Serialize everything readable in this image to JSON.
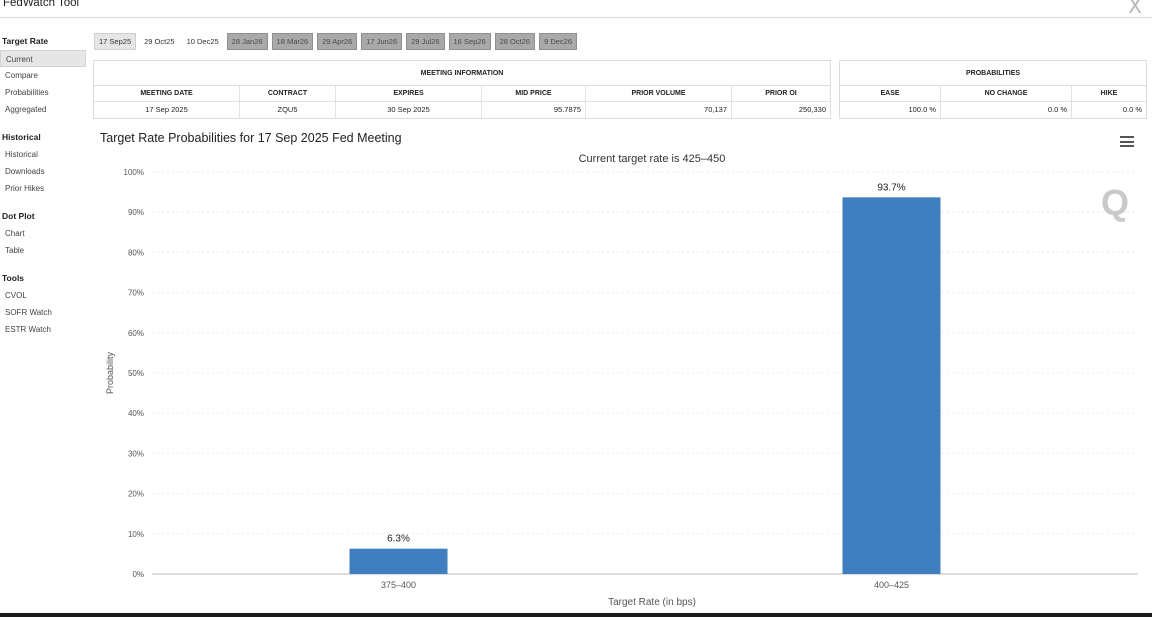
{
  "app": {
    "title": "FedWatch Tool",
    "close_label": "X"
  },
  "sidebar": [
    {
      "heading": "Target Rate",
      "items": [
        {
          "label": "Current",
          "active": true
        },
        {
          "label": "Compare"
        },
        {
          "label": "Probabilities"
        },
        {
          "label": "Aggregated"
        }
      ]
    },
    {
      "heading": "Historical",
      "items": [
        {
          "label": "Historical"
        },
        {
          "label": "Downloads"
        },
        {
          "label": "Prior Hikes"
        }
      ]
    },
    {
      "heading": "Dot Plot",
      "items": [
        {
          "label": "Chart"
        },
        {
          "label": "Table"
        }
      ]
    },
    {
      "heading": "Tools",
      "items": [
        {
          "label": "CVOL"
        },
        {
          "label": "SOFR Watch"
        },
        {
          "label": "ESTR Watch"
        }
      ]
    }
  ],
  "meeting_tabs": [
    {
      "label": "17 Sep25",
      "state": "active"
    },
    {
      "label": "29 Oct25",
      "state": "normal"
    },
    {
      "label": "10 Dec25",
      "state": "normal"
    },
    {
      "label": "28 Jan26",
      "state": "future"
    },
    {
      "label": "18 Mar26",
      "state": "future"
    },
    {
      "label": "29 Apr26",
      "state": "future"
    },
    {
      "label": "17 Jun26",
      "state": "future"
    },
    {
      "label": "29 Jul26",
      "state": "future"
    },
    {
      "label": "16 Sep26",
      "state": "future"
    },
    {
      "label": "28 Oct26",
      "state": "future"
    },
    {
      "label": "9 Dec26",
      "state": "future"
    }
  ],
  "meeting_info": {
    "title": "MEETING INFORMATION",
    "headers": [
      "MEETING DATE",
      "CONTRACT",
      "EXPIRES",
      "MID PRICE",
      "PRIOR VOLUME",
      "PRIOR OI"
    ],
    "values": [
      "17 Sep 2025",
      "ZQU5",
      "30 Sep 2025",
      "95.7875",
      "70,137",
      "250,330"
    ]
  },
  "probabilities": {
    "title": "PROBABILITIES",
    "headers": [
      "EASE",
      "NO CHANGE",
      "HIKE"
    ],
    "values": [
      "100.0 %",
      "0.0 %",
      "0.0 %"
    ]
  },
  "chart_title": "Target Rate Probabilities for 17 Sep 2025 Fed Meeting",
  "chart_data": {
    "type": "bar",
    "subtitle": "Current target rate is 425–450",
    "categories": [
      "375–400",
      "400–425"
    ],
    "values": [
      6.3,
      93.7
    ],
    "data_labels": [
      "6.3%",
      "93.7%"
    ],
    "xlabel": "Target Rate (in bps)",
    "ylabel": "Probability",
    "ylim": [
      0,
      100
    ],
    "yticks": [
      "0%",
      "10%",
      "20%",
      "30%",
      "40%",
      "50%",
      "60%",
      "70%",
      "80%",
      "90%",
      "100%"
    ],
    "grid": true,
    "bar_color": "#3f7fbf"
  }
}
